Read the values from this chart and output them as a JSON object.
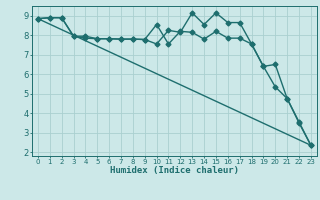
{
  "title": "",
  "xlabel": "Humidex (Indice chaleur)",
  "background_color": "#cce8e8",
  "grid_color": "#aad0d0",
  "line_color": "#1e6e6e",
  "xlim": [
    -0.5,
    23.5
  ],
  "ylim": [
    1.8,
    9.5
  ],
  "yticks": [
    2,
    3,
    4,
    5,
    6,
    7,
    8,
    9
  ],
  "xticks": [
    0,
    1,
    2,
    3,
    4,
    5,
    6,
    7,
    8,
    9,
    10,
    11,
    12,
    13,
    14,
    15,
    16,
    17,
    18,
    19,
    20,
    21,
    22,
    23
  ],
  "series": [
    {
      "x": [
        0,
        1,
        2,
        3,
        4,
        5,
        6,
        7,
        8,
        9,
        10,
        11,
        12,
        13,
        14,
        15,
        16,
        17,
        18,
        19,
        20,
        21,
        22,
        23
      ],
      "y": [
        8.85,
        8.9,
        8.9,
        7.95,
        7.85,
        7.82,
        7.82,
        7.8,
        7.8,
        7.78,
        8.55,
        7.55,
        8.2,
        8.15,
        7.8,
        8.2,
        7.85,
        7.85,
        7.55,
        6.4,
        6.5,
        4.75,
        3.5,
        2.35
      ],
      "marker": "D",
      "markersize": 2.5,
      "linewidth": 1.0,
      "zorder": 3
    },
    {
      "x": [
        0,
        1,
        2,
        3,
        4,
        5,
        6,
        7,
        8,
        9,
        10,
        11,
        12,
        13,
        14,
        15,
        16,
        17,
        18,
        19,
        20,
        21,
        22,
        23
      ],
      "y": [
        8.85,
        8.9,
        8.9,
        7.95,
        7.95,
        7.82,
        7.82,
        7.8,
        7.8,
        7.78,
        7.55,
        8.25,
        8.15,
        9.15,
        8.55,
        9.15,
        8.65,
        8.65,
        7.55,
        6.4,
        5.35,
        4.75,
        3.55,
        2.35
      ],
      "marker": "D",
      "markersize": 2.5,
      "linewidth": 1.0,
      "zorder": 3
    },
    {
      "x": [
        0,
        23
      ],
      "y": [
        8.85,
        2.35
      ],
      "marker": null,
      "markersize": 0,
      "linewidth": 1.0,
      "zorder": 2
    }
  ],
  "tick_fontsize_x": 5.0,
  "tick_fontsize_y": 6.0,
  "xlabel_fontsize": 6.5,
  "figure_width": 3.2,
  "figure_height": 2.0,
  "dpi": 100
}
